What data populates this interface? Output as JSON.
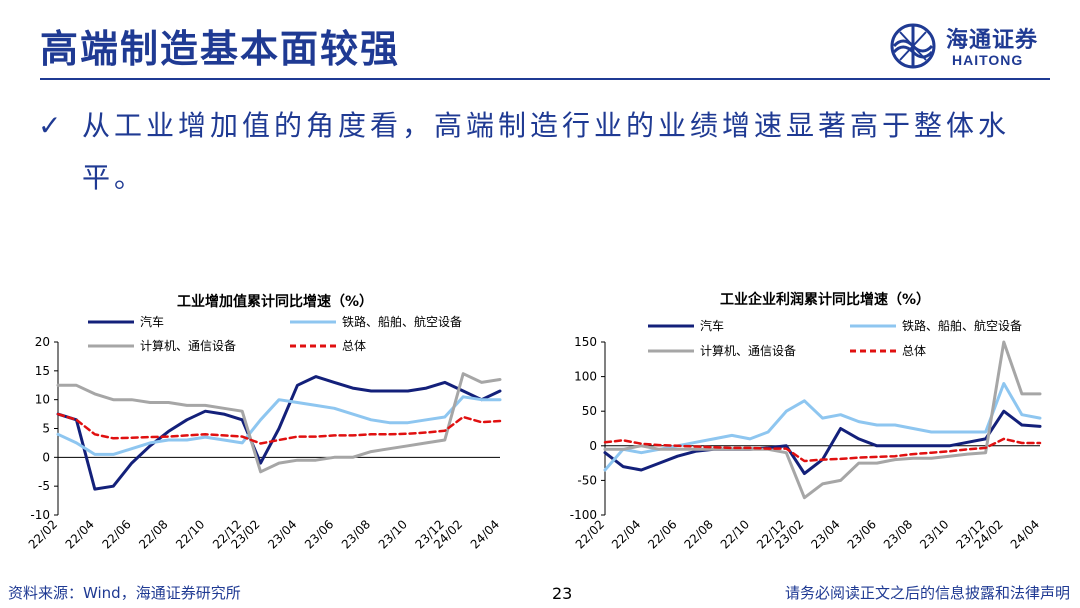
{
  "header": {
    "title": "高端制造基本面较强",
    "logo_cn": "海通证券",
    "logo_en": "HAITONG"
  },
  "bullet": {
    "text": "从工业增加值的角度看，高端制造行业的业绩增速显著高于整体水平。"
  },
  "footer": {
    "source": "资料来源：Wind，海通证券研究所",
    "page": "23",
    "disclaimer": "请务必阅读正文之后的信息披露和法律声明"
  },
  "colors": {
    "brand": "#1f3a93",
    "auto": "#13207a",
    "rail": "#8ec6f0",
    "computer": "#a6a6a6",
    "total": "#e01010"
  },
  "chart_data": [
    {
      "type": "line",
      "title": "工业增加值累计同比增速（%）",
      "x": [
        "22/02",
        "22/03",
        "22/04",
        "22/05",
        "22/06",
        "22/07",
        "22/08",
        "22/09",
        "22/10",
        "22/11",
        "22/12",
        "23/02",
        "23/03",
        "23/04",
        "23/05",
        "23/06",
        "23/07",
        "23/08",
        "23/09",
        "23/10",
        "23/11",
        "23/12",
        "24/02",
        "24/03",
        "24/04"
      ],
      "xticks": [
        "22/02",
        "22/04",
        "22/06",
        "22/08",
        "22/10",
        "22/12",
        "23/02",
        "23/04",
        "23/06",
        "23/08",
        "23/10",
        "23/12",
        "24/02",
        "24/04"
      ],
      "ylim": [
        -10,
        20
      ],
      "yticks": [
        -10,
        -5,
        0,
        5,
        10,
        15,
        20
      ],
      "legend_placement": "top",
      "series": [
        {
          "name": "汽车",
          "color_key": "auto",
          "style": "solid",
          "values": [
            7.5,
            6.5,
            -5.5,
            -5.0,
            -1.0,
            2.0,
            4.5,
            6.5,
            8.0,
            7.5,
            6.5,
            -1.0,
            5.0,
            12.5,
            14.0,
            13.0,
            12.0,
            11.5,
            11.5,
            11.5,
            12.0,
            13.0,
            11.5,
            10.0,
            11.5
          ]
        },
        {
          "name": "铁路、船舶、航空设备",
          "color_key": "rail",
          "style": "solid",
          "values": [
            4.0,
            2.5,
            0.5,
            0.5,
            1.5,
            2.5,
            3.0,
            3.0,
            3.5,
            3.0,
            2.5,
            6.5,
            10.0,
            9.5,
            9.0,
            8.5,
            7.5,
            6.5,
            6.0,
            6.0,
            6.5,
            7.0,
            10.5,
            10.0,
            10.0
          ]
        },
        {
          "name": "计算机、通信设备",
          "color_key": "computer",
          "style": "solid",
          "values": [
            12.5,
            12.5,
            11.0,
            10.0,
            10.0,
            9.5,
            9.5,
            9.0,
            9.0,
            8.5,
            8.0,
            -2.5,
            -1.0,
            -0.5,
            -0.5,
            0.0,
            0.0,
            1.0,
            1.5,
            2.0,
            2.5,
            3.0,
            14.5,
            13.0,
            13.5
          ]
        },
        {
          "name": "总体",
          "color_key": "total",
          "style": "dashed",
          "values": [
            7.5,
            6.5,
            4.0,
            3.3,
            3.4,
            3.5,
            3.6,
            3.8,
            4.0,
            3.8,
            3.6,
            2.4,
            3.0,
            3.6,
            3.6,
            3.8,
            3.8,
            4.0,
            4.0,
            4.1,
            4.3,
            4.6,
            7.0,
            6.1,
            6.3
          ]
        }
      ]
    },
    {
      "type": "line",
      "title": "工业企业利润累计同比增速（%）",
      "x": [
        "22/02",
        "22/03",
        "22/04",
        "22/05",
        "22/06",
        "22/07",
        "22/08",
        "22/09",
        "22/10",
        "22/11",
        "22/12",
        "23/02",
        "23/03",
        "23/04",
        "23/05",
        "23/06",
        "23/07",
        "23/08",
        "23/09",
        "23/10",
        "23/11",
        "23/12",
        "24/02",
        "24/03",
        "24/04"
      ],
      "xticks": [
        "22/02",
        "22/04",
        "22/06",
        "22/08",
        "22/10",
        "22/12",
        "23/02",
        "23/04",
        "23/06",
        "23/08",
        "23/10",
        "23/12",
        "24/02",
        "24/04"
      ],
      "ylim": [
        -100,
        150
      ],
      "yticks": [
        -100,
        -50,
        0,
        50,
        100,
        150
      ],
      "legend_placement": "top",
      "series": [
        {
          "name": "汽车",
          "color_key": "auto",
          "style": "solid",
          "values": [
            -10,
            -30,
            -35,
            -25,
            -15,
            -8,
            -5,
            -5,
            -5,
            -3,
            0,
            -40,
            -20,
            25,
            10,
            0,
            0,
            0,
            0,
            0,
            5,
            10,
            50,
            30,
            28
          ]
        },
        {
          "name": "铁路、船舶、航空设备",
          "color_key": "rail",
          "style": "solid",
          "values": [
            -35,
            -5,
            -10,
            -5,
            0,
            5,
            10,
            15,
            10,
            20,
            50,
            65,
            40,
            45,
            35,
            30,
            30,
            25,
            20,
            20,
            20,
            20,
            90,
            45,
            40
          ]
        },
        {
          "name": "计算机、通信设备",
          "color_key": "computer",
          "style": "solid",
          "values": [
            -5,
            -5,
            0,
            -5,
            -5,
            -5,
            -5,
            -5,
            -5,
            -5,
            -10,
            -75,
            -55,
            -50,
            -25,
            -25,
            -20,
            -18,
            -18,
            -15,
            -12,
            -10,
            150,
            75,
            75
          ]
        },
        {
          "name": "总体",
          "color_key": "total",
          "style": "dashed",
          "values": [
            5,
            8,
            3,
            1,
            0,
            -1,
            -2,
            -3,
            -3,
            -4,
            -4,
            -22,
            -20,
            -19,
            -17,
            -16,
            -15,
            -12,
            -10,
            -8,
            -5,
            -3,
            10,
            4,
            4
          ]
        }
      ]
    }
  ]
}
